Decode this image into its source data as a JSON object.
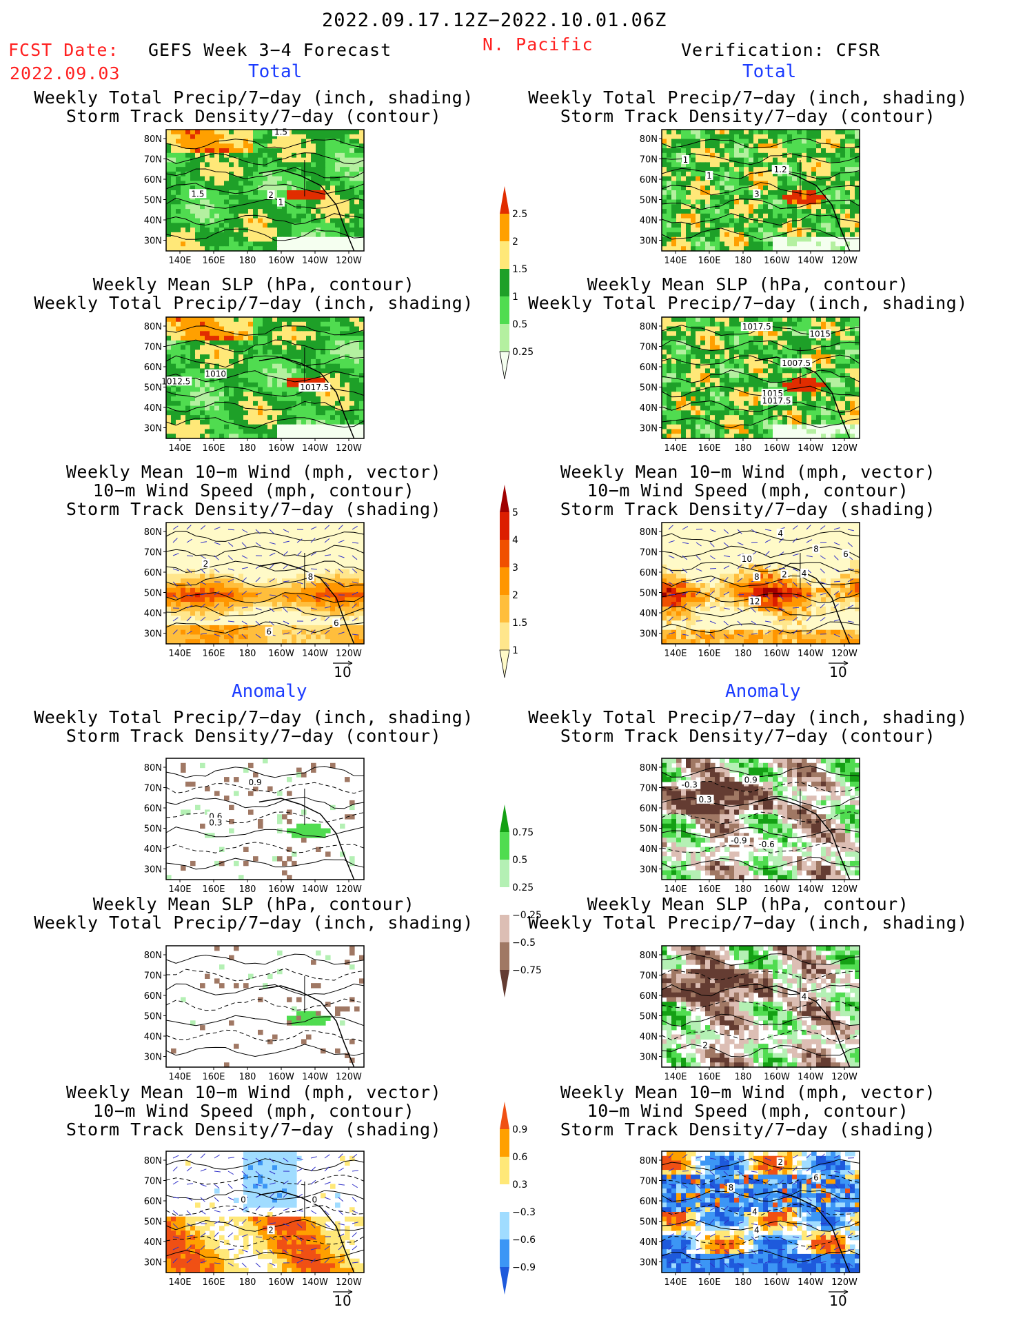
{
  "header": {
    "period": "2022.09.17.12Z−2022.10.01.06Z",
    "fcst_label": "FCST Date:",
    "fcst_date": "2022.09.03",
    "model": "GEFS Week 3−4 Forecast",
    "region": "N. Pacific",
    "verification": "Verification: CFSR"
  },
  "sections": {
    "total": "Total",
    "anomaly": "Anomaly"
  },
  "titles": {
    "precip_track": [
      "Weekly Total Precip/7−day (inch, shading)",
      "Storm Track Density/7−day (contour)"
    ],
    "slp_precip": [
      "Weekly Mean SLP (hPa, contour)",
      "Weekly Total Precip/7−day (inch, shading)"
    ],
    "wind_track": [
      "Weekly Mean 10−m Wind (mph, vector)",
      "10−m Wind Speed (mph, contour)",
      "Storm Track Density/7−day (shading)"
    ]
  },
  "axes": {
    "lat_ticks": [
      "80N",
      "70N",
      "60N",
      "50N",
      "40N",
      "30N"
    ],
    "lon_ticks": [
      "140E",
      "160E",
      "180",
      "160W",
      "140W",
      "120W"
    ],
    "vector_ref": "10"
  },
  "colors": {
    "precip_total": [
      "#f5fff0",
      "#b4f0a0",
      "#50dc50",
      "#1ea028",
      "#ffe878",
      "#ffa000",
      "#e12d00"
    ],
    "storm_total": [
      "#fffac8",
      "#ffe68c",
      "#ffbe3c",
      "#ff9600",
      "#f05000",
      "#dc1e00",
      "#a00000"
    ],
    "precip_anom": [
      "#643c32",
      "#a07864",
      "#dcbeb4",
      "#ffffff",
      "#b4f0b4",
      "#50dc50",
      "#14a014"
    ],
    "storm_anom": [
      "#1e5adc",
      "#3c96f5",
      "#a0dcff",
      "#ffffff",
      "#ffe878",
      "#ffa000",
      "#f05014"
    ]
  },
  "colorbars": [
    {
      "labels": [
        "0.25",
        "0.5",
        "1",
        "1.5",
        "2",
        "2.5"
      ]
    },
    {
      "labels": [
        "1",
        "1.5",
        "2",
        "3",
        "4",
        "5"
      ]
    },
    {
      "labels": [
        "−0.75",
        "−0.5",
        "−0.25",
        "0.25",
        "0.5",
        "0.75"
      ]
    },
    {
      "labels": [
        "−0.9",
        "−0.6",
        "−0.3",
        "0.3",
        "0.6",
        "0.9"
      ]
    }
  ],
  "chart_data": [
    {
      "type": "heatmap",
      "panel": "Forecast total: Weekly Total Precip/7-day & Storm Track Density",
      "contour_labels": [
        "1.5",
        "1.5",
        "2",
        "1"
      ]
    },
    {
      "type": "heatmap",
      "panel": "Verification total: Weekly Total Precip/7-day & Storm Track Density",
      "contour_labels": [
        "1",
        "1",
        "1.2",
        "3"
      ]
    },
    {
      "type": "heatmap",
      "panel": "Forecast total: Weekly Mean SLP & Precip",
      "contour_labels": [
        "1012.5",
        "1010",
        "1017.5"
      ]
    },
    {
      "type": "heatmap",
      "panel": "Verification total: Weekly Mean SLP & Precip",
      "contour_labels": [
        "1017.5",
        "1015",
        "1007.5",
        "1015",
        "1017.5"
      ]
    },
    {
      "type": "heatmap",
      "panel": "Forecast total: 10-m Wind & Storm Track Density",
      "contour_labels": [
        "2",
        "8",
        "6",
        "6"
      ]
    },
    {
      "type": "heatmap",
      "panel": "Verification total: 10-m Wind & Storm Track Density",
      "contour_labels": [
        "4",
        "10",
        "8",
        "2",
        "4",
        "8",
        "6",
        "12"
      ]
    },
    {
      "type": "heatmap",
      "panel": "Forecast anomaly: Precip & Storm Track Density",
      "contour_labels": [
        "0.9",
        "0.6",
        "0.3"
      ]
    },
    {
      "type": "heatmap",
      "panel": "Verification anomaly: Precip & Storm Track Density",
      "contour_labels": [
        "-0.3",
        "0.9",
        "0.3",
        "-0.9",
        "-0.6"
      ]
    },
    {
      "type": "heatmap",
      "panel": "Forecast anomaly: SLP & Precip",
      "contour_labels": []
    },
    {
      "type": "heatmap",
      "panel": "Verification anomaly: SLP & Precip",
      "contour_labels": [
        "4",
        "2"
      ]
    },
    {
      "type": "heatmap",
      "panel": "Forecast anomaly: 10-m Wind & Storm Track Density",
      "contour_labels": [
        "0",
        "2",
        "0"
      ]
    },
    {
      "type": "heatmap",
      "panel": "Verification anomaly: 10-m Wind & Storm Track Density",
      "contour_labels": [
        "2",
        "4",
        "8",
        "6",
        "4"
      ]
    }
  ]
}
